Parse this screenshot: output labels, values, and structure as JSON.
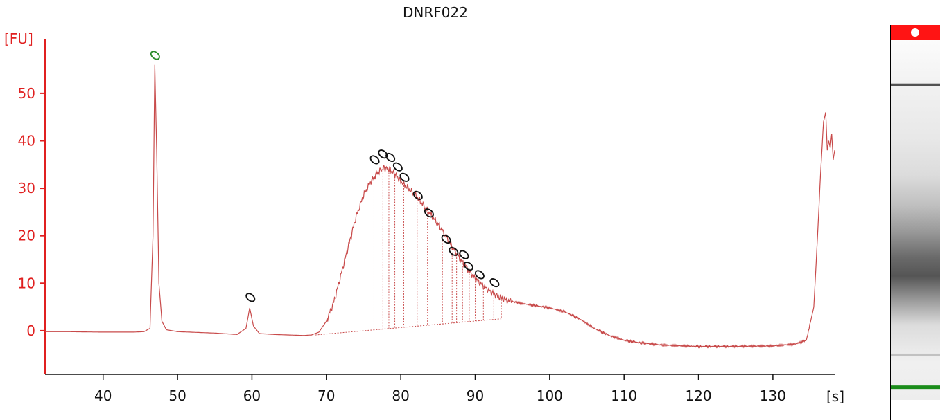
{
  "chart_data": {
    "type": "line",
    "title": "DNRF022",
    "ylabel": "[FU]",
    "xlabel": "[s]",
    "xlim": [
      32.2,
      138.3
    ],
    "ylim": [
      -9.2,
      61.5
    ],
    "xticks": [
      40,
      50,
      60,
      70,
      80,
      90,
      100,
      110,
      120,
      130
    ],
    "yticks": [
      0,
      10,
      20,
      30,
      40,
      50
    ],
    "colors": {
      "axis": "#e02020",
      "trace": "#c84a4a",
      "marker_ladder": "#2a8a2a",
      "peak_marker": "#111111"
    },
    "series": [
      {
        "x": [
          32.2,
          35,
          40,
          44,
          45.5,
          46.3,
          46.7,
          46.95,
          47.2,
          47.5,
          47.9,
          48.5,
          50,
          55,
          58,
          59.2,
          59.7,
          60.2,
          61,
          63,
          65,
          67,
          68,
          69,
          70,
          71,
          72,
          73,
          74,
          75,
          76,
          77,
          77.8,
          78.5,
          79.2,
          80,
          81,
          82,
          83,
          84,
          85,
          86,
          87,
          88,
          89,
          90,
          91,
          92,
          93,
          94,
          96,
          98,
          100,
          102,
          104,
          106,
          108,
          110,
          112,
          115,
          118,
          120,
          125,
          130,
          133,
          134.5,
          135.5,
          136,
          136.4,
          136.8,
          137.1,
          137.3,
          137.5,
          137.7,
          137.9,
          138.1,
          138.3
        ],
        "y": [
          -0.2,
          -0.2,
          -0.3,
          -0.3,
          -0.2,
          0.5,
          20,
          56,
          38,
          10,
          2,
          0.2,
          -0.2,
          -0.5,
          -0.8,
          0.5,
          4.8,
          1,
          -0.6,
          -0.8,
          -0.9,
          -1,
          -0.9,
          -0.3,
          2,
          6,
          12,
          18,
          24,
          28.5,
          31.5,
          33.5,
          34.3,
          34,
          33,
          31.5,
          30,
          28.5,
          26.5,
          24.5,
          22.5,
          20,
          17.5,
          15,
          13,
          11,
          9.5,
          8.3,
          7.3,
          6.5,
          5.8,
          5.3,
          4.8,
          4,
          2.5,
          0.5,
          -1,
          -2,
          -2.5,
          -3,
          -3.2,
          -3.3,
          -3.3,
          -3.2,
          -2.8,
          -2,
          5,
          20,
          33,
          44,
          46,
          38,
          40,
          38.5,
          41.5,
          36,
          38
        ]
      }
    ],
    "peak_markers": [
      {
        "x": 47.0,
        "y": 58,
        "kind": "ladder"
      },
      {
        "x": 59.8,
        "y": 7,
        "kind": "peak"
      },
      {
        "x": 76.5,
        "y": 36,
        "kind": "peak"
      },
      {
        "x": 77.6,
        "y": 37.2,
        "kind": "peak"
      },
      {
        "x": 78.6,
        "y": 36.5,
        "kind": "peak"
      },
      {
        "x": 79.6,
        "y": 34.5,
        "kind": "peak"
      },
      {
        "x": 80.5,
        "y": 32.3,
        "kind": "peak"
      },
      {
        "x": 82.3,
        "y": 28.5,
        "kind": "peak"
      },
      {
        "x": 83.8,
        "y": 24.8,
        "kind": "peak"
      },
      {
        "x": 86.1,
        "y": 19.3,
        "kind": "peak"
      },
      {
        "x": 87.1,
        "y": 16.7,
        "kind": "peak"
      },
      {
        "x": 88.5,
        "y": 16,
        "kind": "peak"
      },
      {
        "x": 89.1,
        "y": 13.6,
        "kind": "peak"
      },
      {
        "x": 90.6,
        "y": 11.8,
        "kind": "peak"
      },
      {
        "x": 92.6,
        "y": 10.1,
        "kind": "peak"
      }
    ],
    "integration_bounds": [
      {
        "x": 76.4,
        "top": 33.0
      },
      {
        "x": 77.6,
        "top": 34.4
      },
      {
        "x": 78.4,
        "top": 33.9
      },
      {
        "x": 79.2,
        "top": 33.0
      },
      {
        "x": 80.4,
        "top": 31.2
      },
      {
        "x": 82.2,
        "top": 28.2
      },
      {
        "x": 83.6,
        "top": 25.5
      },
      {
        "x": 85.6,
        "top": 19.0
      },
      {
        "x": 86.9,
        "top": 16.5
      },
      {
        "x": 87.5,
        "top": 16.0
      },
      {
        "x": 88.3,
        "top": 14.2
      },
      {
        "x": 89.2,
        "top": 12.6
      },
      {
        "x": 90.0,
        "top": 11.0
      },
      {
        "x": 91.1,
        "top": 9.5
      },
      {
        "x": 92.5,
        "top": 8.2
      },
      {
        "x": 93.5,
        "top": 7.1
      }
    ],
    "baseline": {
      "x": [
        68.5,
        93.5
      ],
      "y": [
        -0.9,
        2.5
      ]
    },
    "gel_lane": {
      "bands": [
        {
          "position": 0.0,
          "color": "#ff1414",
          "kind": "marker-top"
        },
        {
          "position": 0.16,
          "color": "#404040",
          "kind": "band"
        },
        {
          "position": 0.66,
          "color": "#5a5a5a",
          "kind": "smear"
        },
        {
          "position": 0.88,
          "color": "#bdbdbd",
          "kind": "band"
        },
        {
          "position": 0.98,
          "color": "#1a8c1a",
          "kind": "marker-bottom"
        }
      ]
    }
  }
}
